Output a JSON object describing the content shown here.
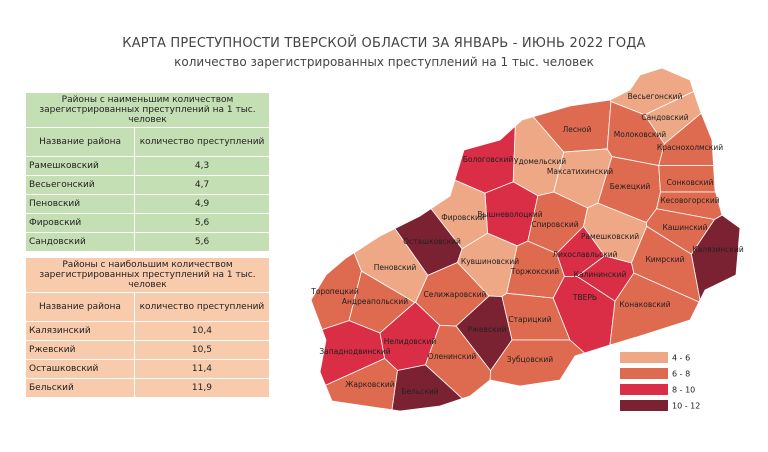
{
  "title": "КАРТА ПРЕСТУПНОСТИ ТВЕРСКОЙ ОБЛАСТИ ЗА ЯНВАРЬ - ИЮНЬ 2022 ГОДА",
  "subtitle": "количество зарегистрированных преступлений на 1 тыс. человек",
  "tables": [
    {
      "caption": "Районы с наименьшим количеством зарегистрированных преступлений на 1 тыс. человек",
      "headers": [
        "Название района",
        "количество преступлений"
      ],
      "rows": [
        [
          "Рамешковский",
          "4,3"
        ],
        [
          "Весьегонский",
          "4,7"
        ],
        [
          "Пеновский",
          "4,9"
        ],
        [
          "Фировский",
          "5,6"
        ],
        [
          "Сандовский",
          "5,6"
        ]
      ]
    },
    {
      "caption": "Районы с наибольшим количеством зарегистрированных преступлений на 1 тыс. человек",
      "headers": [
        "Название района",
        "количество преступлений"
      ],
      "rows": [
        [
          "Калязинский",
          "10,4"
        ],
        [
          "Ржевский",
          "10,5"
        ],
        [
          "Осташковский",
          "11,4"
        ],
        [
          "Бельский",
          "11,9"
        ]
      ]
    }
  ],
  "legend": [
    {
      "label": "4 - 6",
      "color": "#eea886"
    },
    {
      "label": "6 - 8",
      "color": "#de6a50"
    },
    {
      "label": "8 - 10",
      "color": "#d92e45"
    },
    {
      "label": "10 - 12",
      "color": "#7b2232"
    }
  ],
  "districts": [
    {
      "name": "Весьегонский",
      "color": "#eea886"
    },
    {
      "name": "Сандовский",
      "color": "#eea886"
    },
    {
      "name": "Лесной",
      "color": "#de6a50"
    },
    {
      "name": "Молоковский",
      "color": "#de6a50"
    },
    {
      "name": "Краснохолмский",
      "color": "#de6a50"
    },
    {
      "name": "Бологовский",
      "color": "#d92e45"
    },
    {
      "name": "Удомельский",
      "color": "#eea886"
    },
    {
      "name": "Максатихинский",
      "color": "#eea886"
    },
    {
      "name": "Бежецкий",
      "color": "#de6a50"
    },
    {
      "name": "Сонковский",
      "color": "#de6a50"
    },
    {
      "name": "Кесовогорский",
      "color": "#de6a50"
    },
    {
      "name": "Вышневолоцкий",
      "color": "#d92e45"
    },
    {
      "name": "Фировский",
      "color": "#eea886"
    },
    {
      "name": "Спировский",
      "color": "#de6a50"
    },
    {
      "name": "Рамешковский",
      "color": "#eea886"
    },
    {
      "name": "Кашинский",
      "color": "#de6a50"
    },
    {
      "name": "Калязинский",
      "color": "#7b2232"
    },
    {
      "name": "Осташковский",
      "color": "#7b2232"
    },
    {
      "name": "Кувшиновский",
      "color": "#eea886"
    },
    {
      "name": "Лихославльский",
      "color": "#d92e45"
    },
    {
      "name": "Кимрский",
      "color": "#de6a50"
    },
    {
      "name": "Пеновский",
      "color": "#eea886"
    },
    {
      "name": "Калининский",
      "color": "#d92e45"
    },
    {
      "name": "Торжокский",
      "color": "#de6a50"
    },
    {
      "name": "Торопецкий",
      "color": "#de6a50"
    },
    {
      "name": "Андреапольский",
      "color": "#de6a50"
    },
    {
      "name": "Селижаровский",
      "color": "#de6a50"
    },
    {
      "name": "ТВЕРЬ",
      "color": "#d92e45"
    },
    {
      "name": "Конаковский",
      "color": "#de6a50"
    },
    {
      "name": "Старицкий",
      "color": "#de6a50"
    },
    {
      "name": "Ржевский",
      "color": "#7b2232"
    },
    {
      "name": "Нелидовский",
      "color": "#d92e45"
    },
    {
      "name": "Западнодвинский",
      "color": "#d92e45"
    },
    {
      "name": "Оленинский",
      "color": "#de6a50"
    },
    {
      "name": "Зубцовский",
      "color": "#de6a50"
    },
    {
      "name": "Жарковский",
      "color": "#de6a50"
    },
    {
      "name": "Бельский",
      "color": "#7b2232"
    }
  ]
}
